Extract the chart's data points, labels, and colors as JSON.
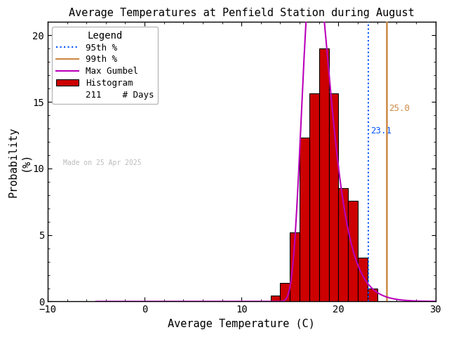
{
  "title": "Average Temperatures at Penfield Station during August",
  "xlabel": "Average Temperature (C)",
  "ylabel": "Probability\n(%)",
  "xlim": [
    -10,
    30
  ],
  "ylim": [
    0,
    21
  ],
  "yticks": [
    0,
    5,
    10,
    15,
    20
  ],
  "xticks": [
    -10,
    0,
    10,
    20,
    30
  ],
  "bg_color": "#ffffff",
  "n_days": 211,
  "hist_color": "#cc0000",
  "hist_edgecolor": "#000000",
  "gumbel_color": "#bb00bb",
  "p95_color": "#0055ff",
  "p99_color": "#cc8844",
  "p95_value": 23.1,
  "p99_value": 25.0,
  "p95_label": "23.1",
  "p99_label": "25.0",
  "legend_title": "Legend",
  "made_on_text": "Made on 25 Apr 2025",
  "made_on_color": "#bbbbbb",
  "bin_edges": [
    13,
    14,
    15,
    16,
    17,
    18,
    19,
    20,
    21,
    22,
    23,
    24
  ],
  "bin_heights": [
    0.47,
    1.42,
    5.21,
    12.32,
    15.64,
    19.0,
    15.64,
    8.53,
    7.58,
    3.32,
    0.95
  ],
  "gumbel_mu": 17.5,
  "gumbel_beta": 1.4
}
